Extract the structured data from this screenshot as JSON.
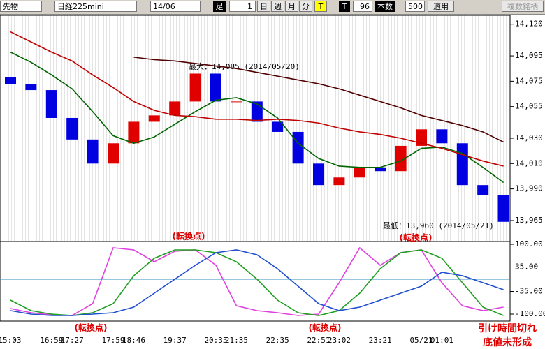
{
  "toolbar": {
    "market": "先物",
    "symbol": "日経225mini",
    "contract": "14/06",
    "bar_label": "足",
    "bar_size": "1",
    "day": "日",
    "week": "週",
    "month": "月",
    "minute": "分",
    "tick": "T",
    "tick2": "T",
    "count_value": "96",
    "count_label": "本数",
    "count_total": "500",
    "apply": "適用",
    "multi": "複数銘柄"
  },
  "chart_data": [
    {
      "type": "candlestick",
      "ylim": [
        13949,
        14127
      ],
      "yticks": [
        {
          "value": 14120,
          "label": "14,120"
        },
        {
          "value": 14095,
          "label": "14,095"
        },
        {
          "value": 14075,
          "label": "14,075"
        },
        {
          "value": 14055,
          "label": "14,055"
        },
        {
          "value": 14030,
          "label": "14,030"
        },
        {
          "value": 14010,
          "label": "14,010"
        },
        {
          "value": 13990,
          "label": "13,990"
        },
        {
          "value": 13965,
          "label": "13,965"
        }
      ],
      "up_color": "#e00000",
      "down_color": "#0000e0",
      "open": [
        14078,
        14073,
        14068,
        14046,
        14029,
        14010,
        14026,
        14043,
        14048,
        14059,
        14081,
        14059,
        14059,
        14043,
        14035,
        14010,
        13993,
        13999,
        14007,
        14004,
        14024,
        14037,
        14026,
        13993,
        13985
      ],
      "close": [
        14073,
        14068,
        14046,
        14029,
        14010,
        14026,
        14043,
        14048,
        14059,
        14081,
        14059,
        14059,
        14043,
        14035,
        14010,
        13993,
        13999,
        14007,
        14004,
        14024,
        14037,
        14026,
        13993,
        13985,
        13964
      ],
      "series": [
        {
          "color": "#006400",
          "values": [
            14098,
            14090,
            14080,
            14069,
            14051,
            14032,
            14026,
            14031,
            14041,
            14051,
            14060,
            14062,
            14057,
            14046,
            14026,
            14014,
            14008,
            14007,
            14007,
            14012,
            14022,
            14023,
            14018,
            14007,
            13995
          ]
        },
        {
          "color": "#c00000",
          "values": [
            14114,
            14106,
            14098,
            14091,
            14080,
            14070,
            14059,
            14052,
            14048,
            14047,
            14045,
            14045,
            14044,
            14045,
            14044,
            14042,
            14038,
            14035,
            14033,
            14030,
            14026,
            14022,
            14017,
            14012,
            14008
          ]
        },
        {
          "color": "#500000",
          "values": [
            null,
            null,
            null,
            null,
            null,
            null,
            14094,
            14092,
            14091,
            14089,
            14087,
            14085,
            14082,
            14079,
            14076,
            14073,
            14069,
            14064,
            14059,
            14054,
            14048,
            14044,
            14040,
            14035,
            14027
          ]
        }
      ],
      "annotations": [
        "最大：14,085 (2014/05/20)",
        "最低：13,960 (2014/05/21)"
      ]
    },
    {
      "type": "line",
      "ylim": [
        -120,
        106
      ],
      "yticks": [
        {
          "value": 100,
          "label": "100.00"
        },
        {
          "value": 35,
          "label": "35.00"
        },
        {
          "value": -35,
          "label": "-35.00"
        },
        {
          "value": -100,
          "label": "-100.00"
        }
      ],
      "reference_line": 0,
      "categories": [
        null,
        null,
        "16:59",
        "17:27",
        null,
        "17:59",
        "18:46",
        null,
        "19:37",
        null,
        "20:35",
        "21:35",
        null,
        "22:35",
        null,
        "22:51",
        "23:02",
        null,
        "23:21",
        null,
        "05/21",
        "01:01",
        null,
        null,
        null
      ],
      "first_label": "15:03",
      "series": [
        {
          "color": "#e040e0",
          "values": [
            -84,
            -96,
            -102,
            -104,
            -70,
            90,
            84,
            50,
            80,
            84,
            40,
            -76,
            -90,
            -96,
            -104,
            -100,
            -10,
            90,
            40,
            76,
            84,
            -10,
            -76,
            -90,
            -80
          ]
        },
        {
          "color": "#20a020",
          "values": [
            -60,
            -90,
            -100,
            -104,
            -96,
            -70,
            10,
            60,
            84,
            84,
            76,
            50,
            0,
            -60,
            -96,
            -104,
            -90,
            -40,
            30,
            76,
            84,
            60,
            -10,
            -80,
            -104
          ]
        },
        {
          "color": "#2050d0",
          "values": [
            -90,
            -100,
            -104,
            -104,
            -100,
            -96,
            -80,
            -40,
            0,
            40,
            76,
            84,
            70,
            30,
            -20,
            -70,
            -90,
            -80,
            -60,
            -40,
            -20,
            20,
            10,
            -10,
            -30
          ]
        }
      ],
      "annotations": [
        "(転換点)",
        "(転換点)",
        "(転換点)",
        "(転換点)",
        "引け時間切れ",
        "底値未形成"
      ]
    }
  ]
}
